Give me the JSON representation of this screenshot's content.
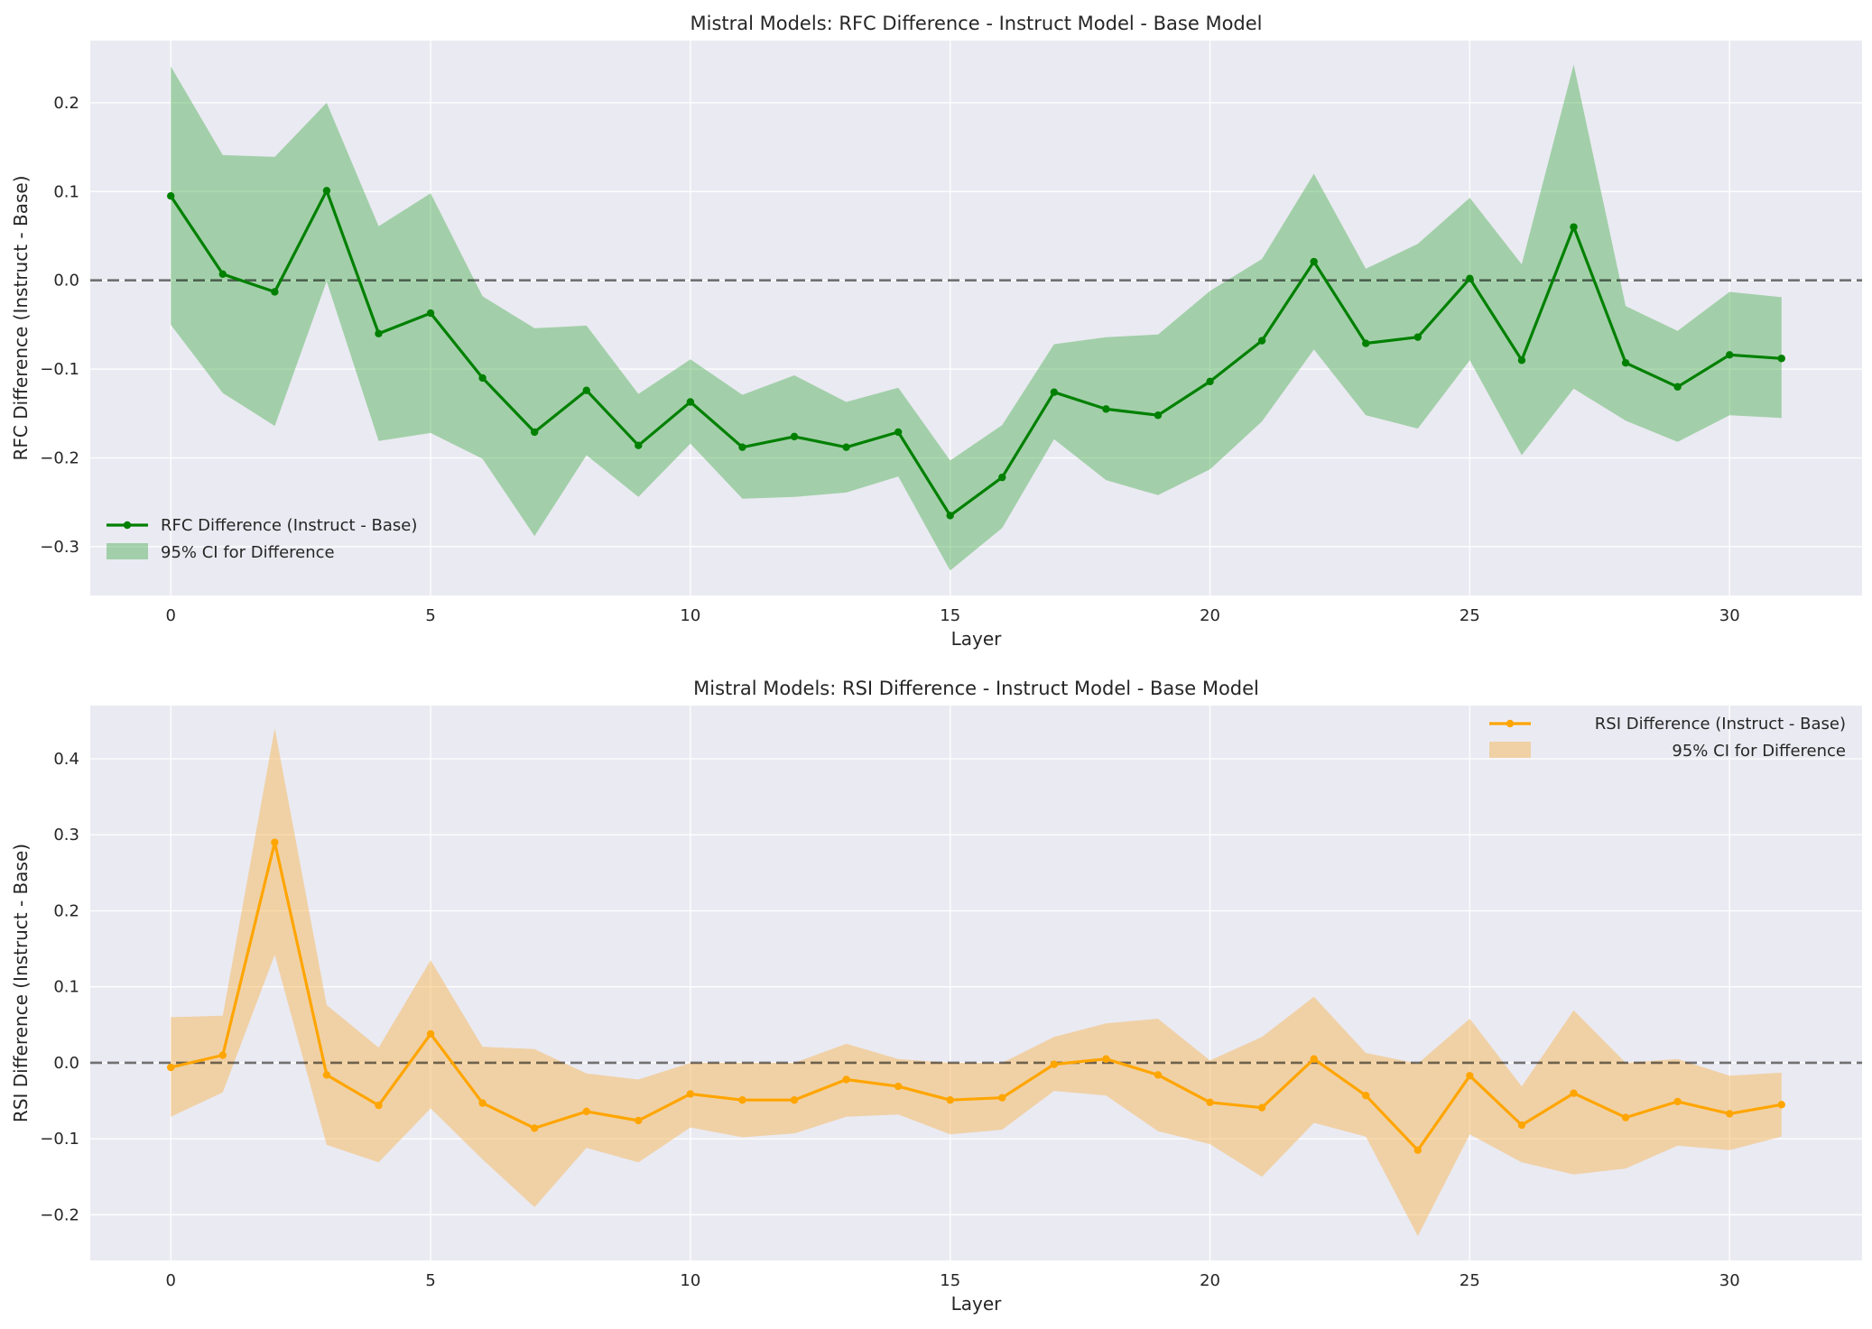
{
  "chart_data": [
    {
      "type": "line",
      "title": "Mistral Models: RFC Difference - Instruct Model - Base Model",
      "xlabel": "Layer",
      "ylabel": "RFC Difference (Instruct - Base)",
      "xlim": [
        -1.55,
        32.55
      ],
      "ylim": [
        -0.355,
        0.27
      ],
      "xticks": [
        0,
        5,
        10,
        15,
        20,
        25,
        30
      ],
      "xtick_labels": [
        "0",
        "5",
        "10",
        "15",
        "20",
        "25",
        "30"
      ],
      "yticks": [
        -0.3,
        -0.2,
        -0.1,
        0.0,
        0.1,
        0.2
      ],
      "ytick_labels": [
        "−0.3",
        "−0.2",
        "−0.1",
        "0.0",
        "0.1",
        "0.2"
      ],
      "grid": true,
      "reference_line": 0,
      "legend_position": "lower-left",
      "series": [
        {
          "name": "RFC Difference (Instruct - Base)",
          "color": "#008000",
          "ci_color": "#4caf50",
          "ci_label": "95% CI for Difference",
          "x": [
            0,
            1,
            2,
            3,
            4,
            5,
            6,
            7,
            8,
            9,
            10,
            11,
            12,
            13,
            14,
            15,
            16,
            17,
            18,
            19,
            20,
            21,
            22,
            23,
            24,
            25,
            26,
            27,
            28,
            29,
            30,
            31
          ],
          "values": [
            0.095,
            0.007,
            -0.013,
            0.101,
            -0.06,
            -0.037,
            -0.11,
            -0.171,
            -0.124,
            -0.186,
            -0.137,
            -0.188,
            -0.176,
            -0.188,
            -0.171,
            -0.265,
            -0.222,
            -0.126,
            -0.145,
            -0.152,
            -0.114,
            -0.068,
            0.021,
            -0.071,
            -0.064,
            0.002,
            -0.09,
            0.06,
            -0.093,
            -0.12,
            -0.084,
            -0.088
          ],
          "ci_lower": [
            -0.05,
            -0.127,
            -0.164,
            -0.001,
            -0.181,
            -0.172,
            -0.201,
            -0.288,
            -0.197,
            -0.244,
            -0.184,
            -0.246,
            -0.244,
            -0.239,
            -0.221,
            -0.327,
            -0.279,
            -0.179,
            -0.225,
            -0.242,
            -0.213,
            -0.159,
            -0.078,
            -0.152,
            -0.167,
            -0.09,
            -0.197,
            -0.122,
            -0.158,
            -0.182,
            -0.152,
            -0.155
          ],
          "ci_upper": [
            0.241,
            0.141,
            0.139,
            0.2,
            0.061,
            0.098,
            -0.018,
            -0.054,
            -0.051,
            -0.128,
            -0.089,
            -0.129,
            -0.107,
            -0.137,
            -0.121,
            -0.203,
            -0.163,
            -0.072,
            -0.064,
            -0.061,
            -0.012,
            0.024,
            0.12,
            0.013,
            0.041,
            0.093,
            0.018,
            0.243,
            -0.029,
            -0.057,
            -0.013,
            -0.019
          ]
        }
      ]
    },
    {
      "type": "line",
      "title": "Mistral Models: RSI Difference - Instruct Model - Base Model",
      "xlabel": "Layer",
      "ylabel": "RSI Difference (Instruct - Base)",
      "xlim": [
        -1.55,
        32.55
      ],
      "ylim": [
        -0.26,
        0.47
      ],
      "xticks": [
        0,
        5,
        10,
        15,
        20,
        25,
        30
      ],
      "xtick_labels": [
        "0",
        "5",
        "10",
        "15",
        "20",
        "25",
        "30"
      ],
      "yticks": [
        -0.2,
        -0.1,
        0.0,
        0.1,
        0.2,
        0.3,
        0.4
      ],
      "ytick_labels": [
        "−0.2",
        "−0.1",
        "0.0",
        "0.1",
        "0.2",
        "0.3",
        "0.4"
      ],
      "grid": true,
      "reference_line": 0,
      "legend_position": "top-right",
      "series": [
        {
          "name": "RSI Difference (Instruct - Base)",
          "color": "#ffa500",
          "ci_color": "#f5b75a",
          "ci_label": "95% CI for Difference",
          "x": [
            0,
            1,
            2,
            3,
            4,
            5,
            6,
            7,
            8,
            9,
            10,
            11,
            12,
            13,
            14,
            15,
            16,
            17,
            18,
            19,
            20,
            21,
            22,
            23,
            24,
            25,
            26,
            27,
            28,
            29,
            30,
            31
          ],
          "values": [
            -0.006,
            0.01,
            0.29,
            -0.016,
            -0.056,
            0.038,
            -0.053,
            -0.086,
            -0.064,
            -0.076,
            -0.041,
            -0.049,
            -0.049,
            -0.022,
            -0.031,
            -0.049,
            -0.046,
            -0.002,
            0.005,
            -0.016,
            -0.052,
            -0.059,
            0.005,
            -0.043,
            -0.115,
            -0.017,
            -0.082,
            -0.04,
            -0.072,
            -0.051,
            -0.067,
            -0.055
          ],
          "ci_lower": [
            -0.071,
            -0.039,
            0.142,
            -0.108,
            -0.131,
            -0.06,
            -0.127,
            -0.19,
            -0.112,
            -0.131,
            -0.085,
            -0.098,
            -0.093,
            -0.071,
            -0.068,
            -0.094,
            -0.088,
            -0.037,
            -0.043,
            -0.09,
            -0.107,
            -0.15,
            -0.079,
            -0.097,
            -0.228,
            -0.094,
            -0.131,
            -0.147,
            -0.139,
            -0.109,
            -0.115,
            -0.097
          ],
          "ci_upper": [
            0.06,
            0.062,
            0.44,
            0.076,
            0.02,
            0.135,
            0.021,
            0.018,
            -0.014,
            -0.022,
            0.0,
            0.0,
            0.0,
            0.025,
            0.005,
            0.0,
            0.0,
            0.034,
            0.052,
            0.058,
            0.003,
            0.034,
            0.087,
            0.013,
            -0.001,
            0.058,
            -0.031,
            0.069,
            0.0,
            0.005,
            -0.017,
            -0.013
          ]
        }
      ]
    }
  ]
}
